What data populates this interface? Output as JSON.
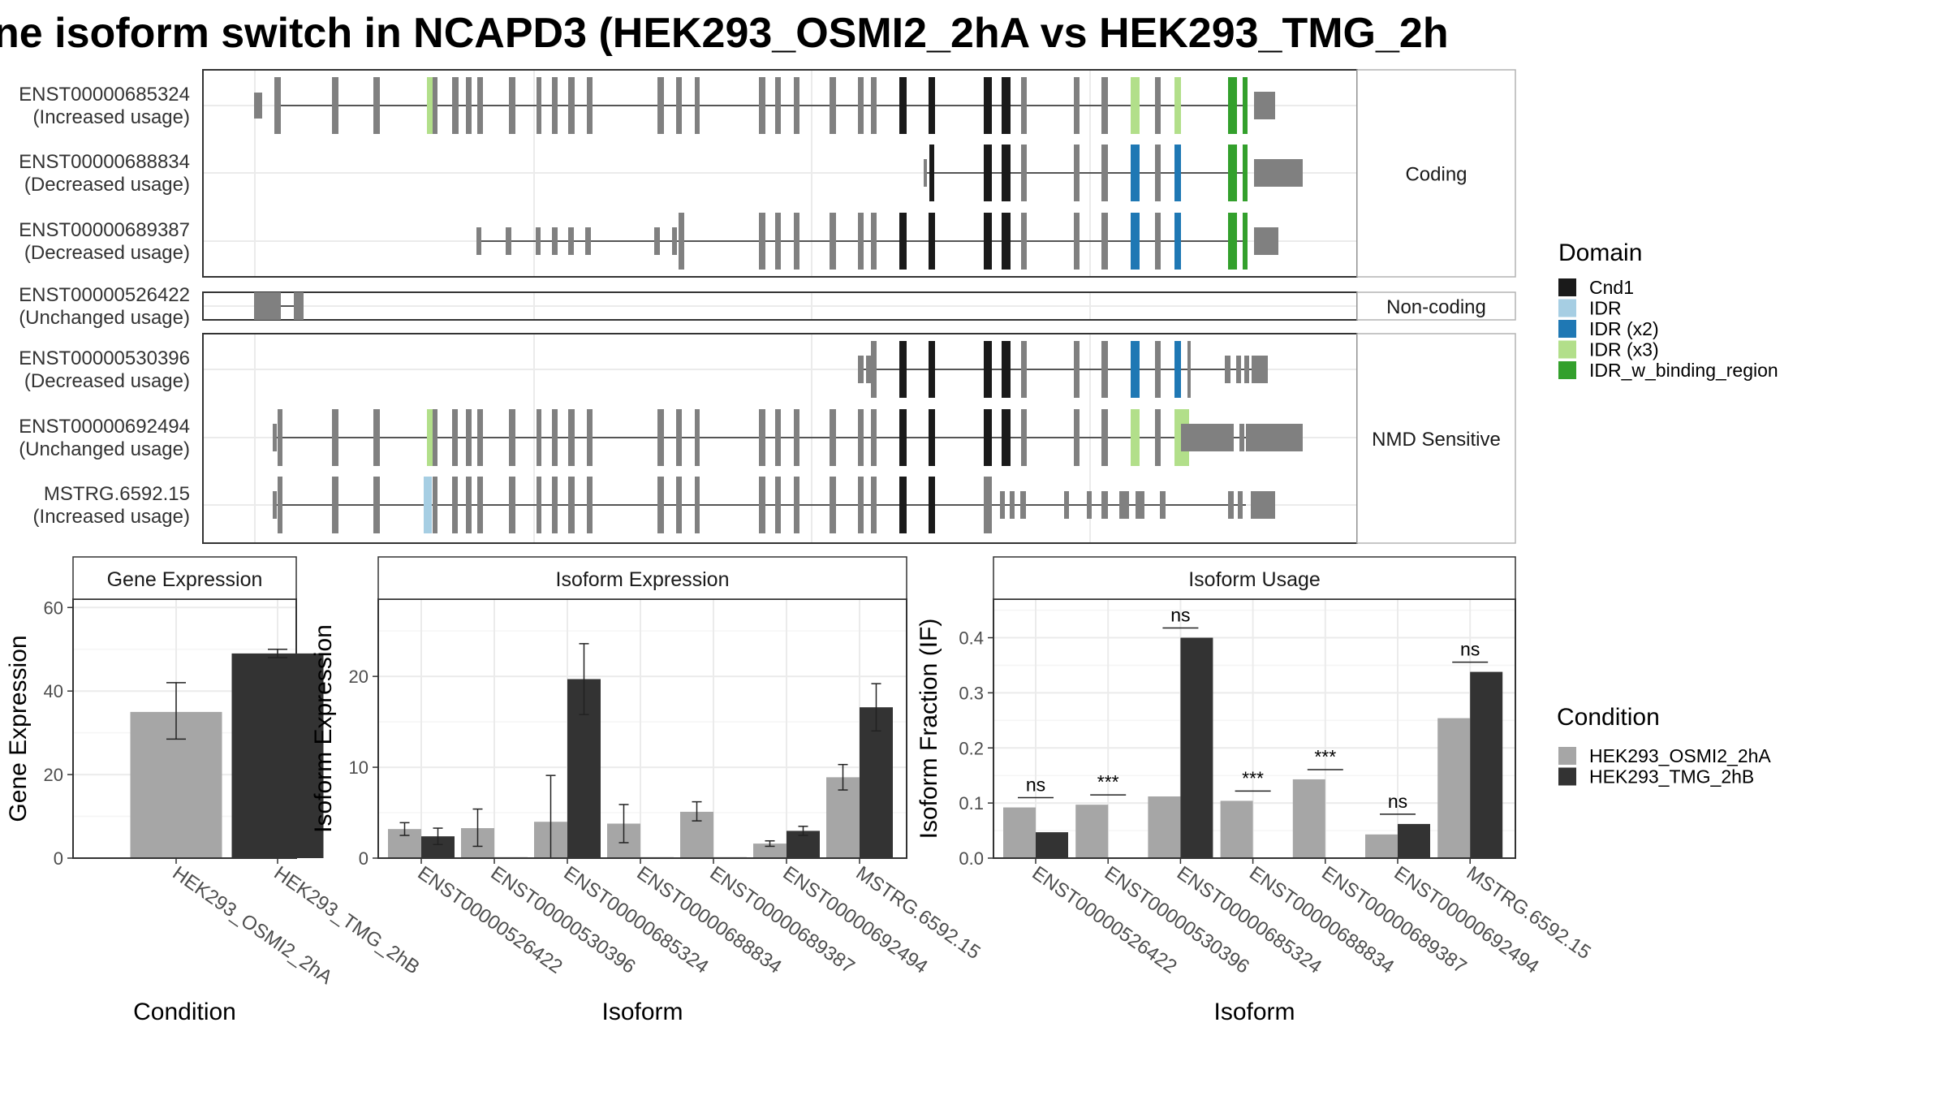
{
  "title": "ne isoform switch in NCAPD3 (HEK293_OSMI2_2hA vs HEK293_TMG_2h",
  "colors": {
    "exon_gray": "#808080",
    "cond_a": "#a6a6a6",
    "cond_b": "#333333",
    "grid": "#ebebeb",
    "frame": "#333333",
    "strip_border": "#b3b3b3"
  },
  "domains": [
    {
      "name": "Cnd1",
      "color": "#1a1a1a"
    },
    {
      "name": "IDR",
      "color": "#a6cee3"
    },
    {
      "name": "IDR (x2)",
      "color": "#1f78b4"
    },
    {
      "name": "IDR (x3)",
      "color": "#b2df8a"
    },
    {
      "name": "IDR_w_binding_region",
      "color": "#33a02c"
    }
  ],
  "legend": {
    "domain_title": "Domain",
    "condition_title": "Condition",
    "conditions": [
      "HEK293_OSMI2_2hA",
      "HEK293_TMG_2hB"
    ]
  },
  "structure": {
    "panels": [
      {
        "label": "Coding",
        "tracks": [
          {
            "id": "ENST00000685324",
            "usage": "(Increased usage)"
          },
          {
            "id": "ENST00000688834",
            "usage": "(Decreased usage)"
          },
          {
            "id": "ENST00000689387",
            "usage": "(Decreased usage)"
          }
        ]
      },
      {
        "label": "Non-coding",
        "tracks": [
          {
            "id": "ENST00000526422",
            "usage": "(Unchanged usage)"
          }
        ]
      },
      {
        "label": "NMD Sensitive",
        "tracks": [
          {
            "id": "ENST00000530396",
            "usage": "(Decreased usage)"
          },
          {
            "id": "ENST00000692494",
            "usage": "(Unchanged usage)"
          },
          {
            "id": "MSTRG.6592.15",
            "usage": "(Increased usage)"
          }
        ]
      }
    ]
  },
  "chart_data": [
    {
      "type": "bar",
      "title": "Gene Expression",
      "xlabel": "Condition",
      "ylabel": "Gene Expression",
      "ylim": [
        0,
        62
      ],
      "yticks": [
        0,
        20,
        40,
        60
      ],
      "categories": [
        "HEK293_OSMI2_2hA",
        "HEK293_TMG_2hB"
      ],
      "values": [
        35,
        49
      ],
      "error_low": [
        28.5,
        48
      ],
      "error_high": [
        42,
        50
      ],
      "grid": true
    },
    {
      "type": "bar",
      "title": "Isoform Expression",
      "xlabel": "Isoform",
      "ylabel": "Isoform Expression",
      "ylim": [
        0,
        28.5
      ],
      "yticks": [
        0,
        10,
        20
      ],
      "categories": [
        "ENST00000526422",
        "ENST00000530396",
        "ENST00000685324",
        "ENST00000688834",
        "ENST00000689387",
        "ENST00000692494",
        "MSTRG.6592.15"
      ],
      "series": [
        {
          "name": "HEK293_OSMI2_2hA",
          "values": [
            3.2,
            3.3,
            4.0,
            3.8,
            5.1,
            1.6,
            8.9
          ],
          "error_low": [
            2.5,
            1.3,
            0,
            1.7,
            4.1,
            1.3,
            7.5
          ],
          "error_high": [
            3.9,
            5.4,
            9.1,
            5.9,
            6.2,
            1.9,
            10.3
          ]
        },
        {
          "name": "HEK293_TMG_2hB",
          "values": [
            2.4,
            0.1,
            19.7,
            0.1,
            0.1,
            3.0,
            16.6
          ],
          "error_low": [
            1.5,
            null,
            15.8,
            null,
            null,
            2.5,
            14.0
          ],
          "error_high": [
            3.3,
            null,
            23.6,
            null,
            null,
            3.5,
            19.2
          ]
        }
      ],
      "grid": true
    },
    {
      "type": "bar",
      "title": "Isoform Usage",
      "xlabel": "Isoform",
      "ylabel": "Isoform Fraction (IF)",
      "ylim": [
        0,
        0.47
      ],
      "yticks": [
        0.0,
        0.1,
        0.2,
        0.3,
        0.4
      ],
      "ytick_labels": [
        "0.0",
        "0.1",
        "0.2",
        "0.3",
        "0.4"
      ],
      "categories": [
        "ENST00000526422",
        "ENST00000530396",
        "ENST00000685324",
        "ENST00000688834",
        "ENST00000689387",
        "ENST00000692494",
        "MSTRG.6592.15"
      ],
      "series": [
        {
          "name": "HEK293_OSMI2_2hA",
          "values": [
            0.092,
            0.097,
            0.112,
            0.104,
            0.143,
            0.043,
            0.254
          ]
        },
        {
          "name": "HEK293_TMG_2hB",
          "values": [
            0.047,
            0,
            0.4,
            0,
            0,
            0.062,
            0.338
          ]
        }
      ],
      "significance": [
        "ns",
        "***",
        "ns",
        "***",
        "***",
        "ns",
        "ns"
      ],
      "grid": true
    }
  ]
}
